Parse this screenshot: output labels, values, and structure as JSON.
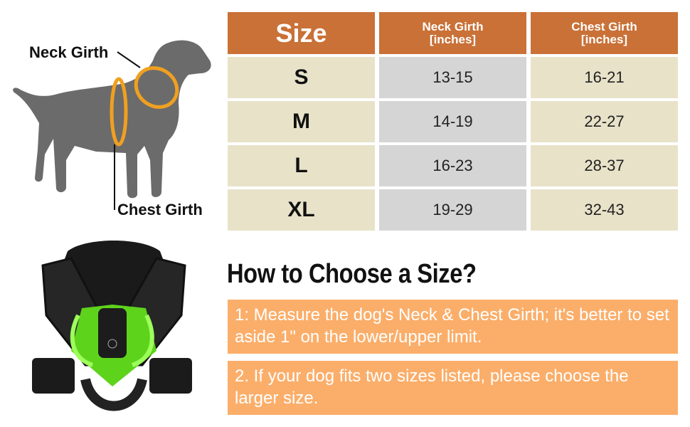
{
  "diagram": {
    "neck_label": "Neck Girth",
    "chest_label": "Chest Girth"
  },
  "table": {
    "headers": [
      "Size",
      "Neck Girth\n[inches]",
      "Chest Girth\n[inches]"
    ],
    "header_lines": {
      "neck": [
        "Neck Girth",
        "[inches]"
      ],
      "chest": [
        "Chest Girth",
        "[inches]"
      ]
    },
    "rows": [
      {
        "size": "S",
        "neck": "13-15",
        "chest": "16-21"
      },
      {
        "size": "M",
        "neck": "14-19",
        "chest": "22-27"
      },
      {
        "size": "L",
        "neck": "16-23",
        "chest": "28-37"
      },
      {
        "size": "XL",
        "neck": "19-29",
        "chest": "32-43"
      }
    ]
  },
  "guide": {
    "title": "How to Choose a Size?",
    "tips": [
      "1: Measure the dog's Neck & Chest Girth; it's better to set aside 1\" on the lower/upper limit.",
      "2. If your dog fits two sizes listed, please choose the larger size."
    ]
  },
  "colors": {
    "header": "#c97137",
    "size_cell": "#e8e2c9",
    "neck_cell": "#d5d5d5",
    "tip_bg": "#fbae6a",
    "ring": "#f0a020",
    "harness_glow": "#6ef021"
  }
}
